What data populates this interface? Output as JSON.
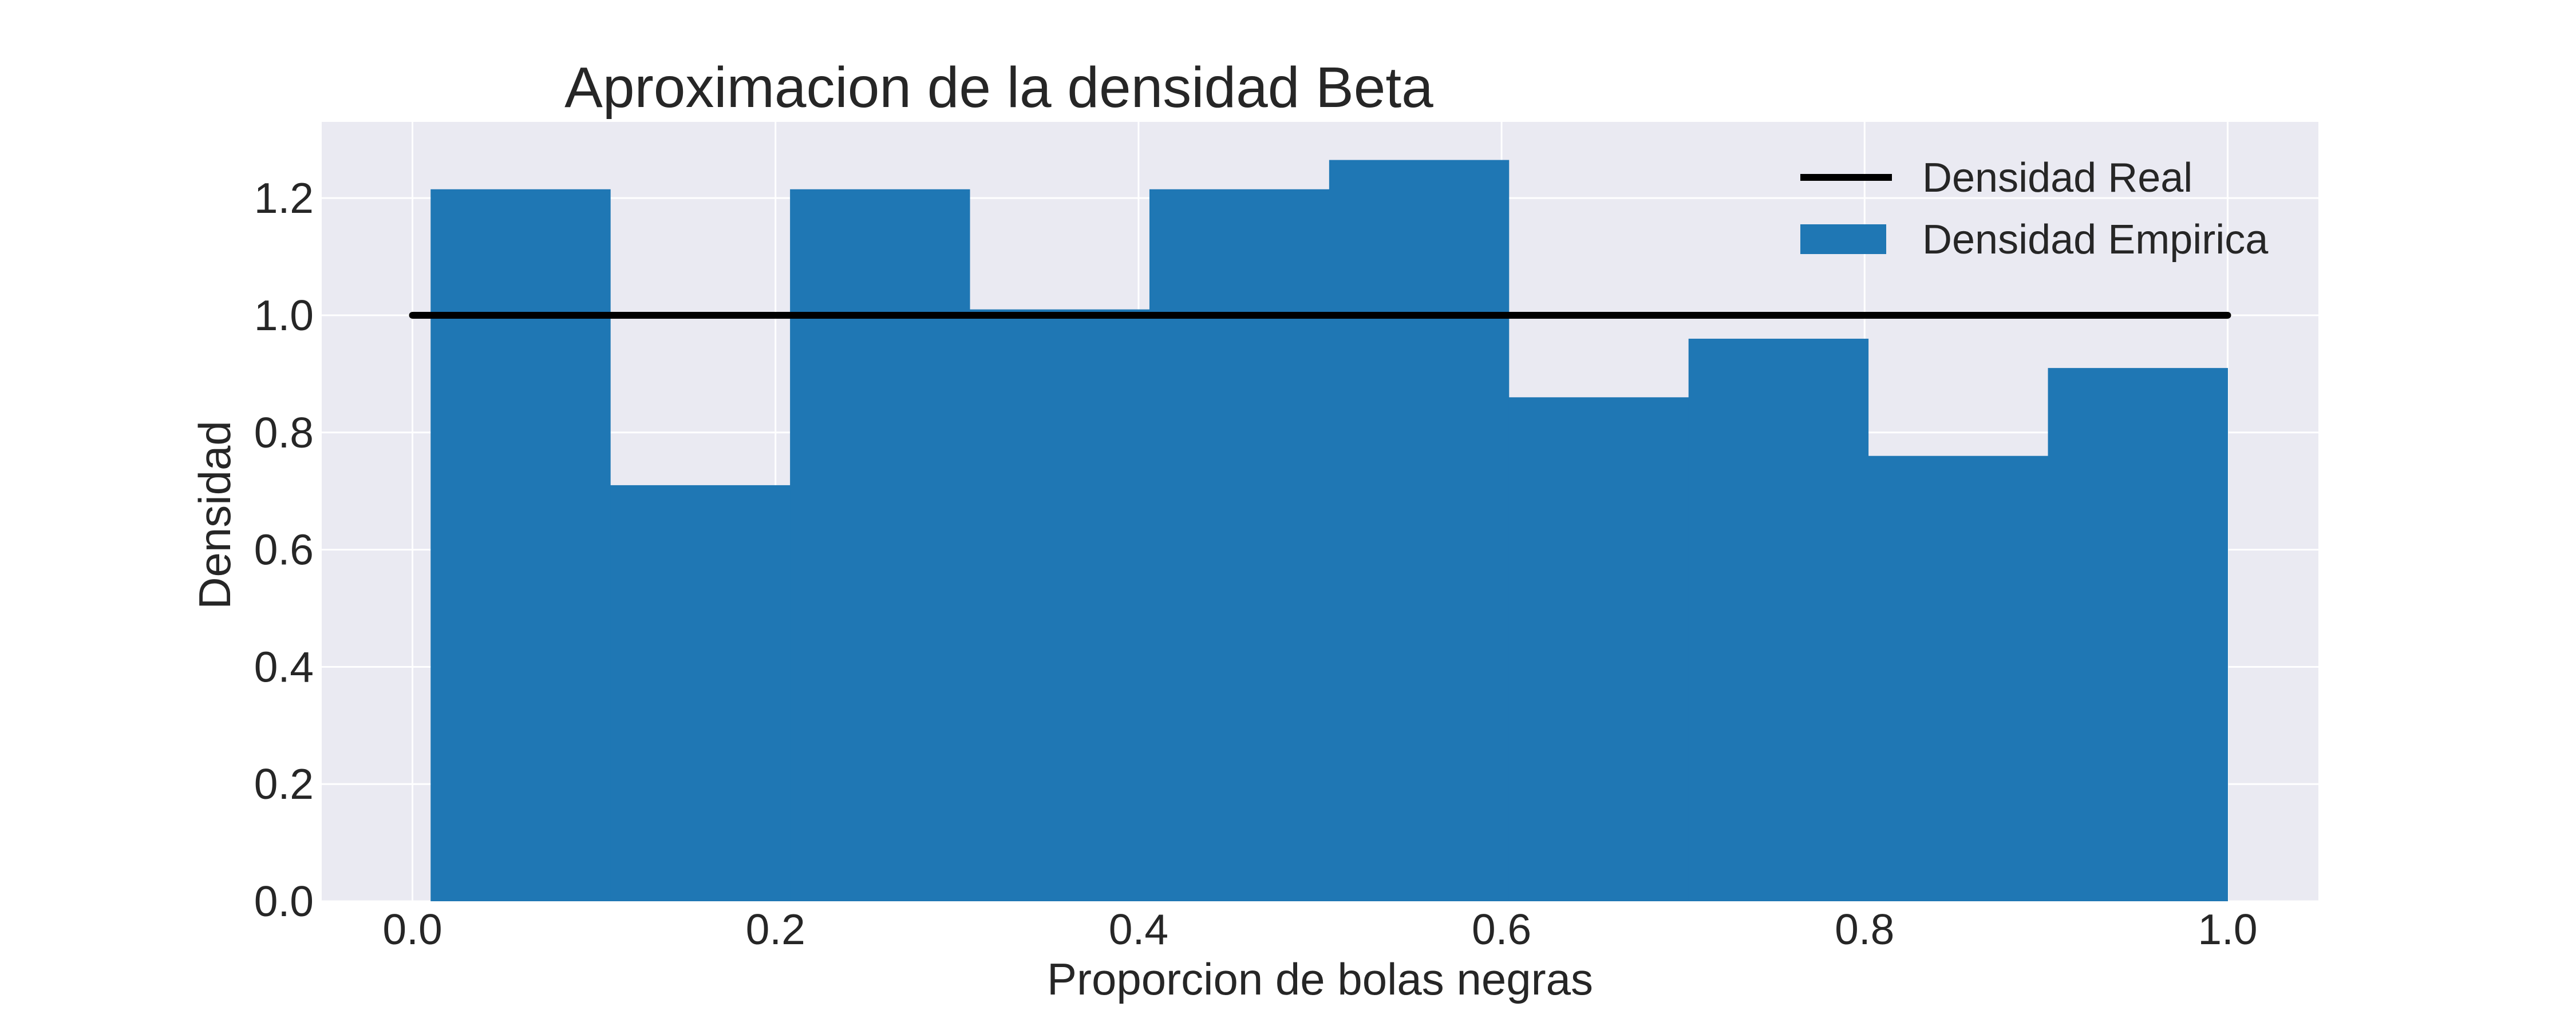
{
  "chart_data": {
    "type": "bar",
    "title": "Aproximacion de la densidad Beta",
    "xlabel": "Proporcion de bolas negras",
    "ylabel": "Densidad",
    "xlim": [
      -0.05,
      1.05
    ],
    "ylim": [
      0,
      1.33
    ],
    "x_ticks": [
      "0.0",
      "0.2",
      "0.4",
      "0.6",
      "0.8",
      "1.0"
    ],
    "y_ticks": [
      "0.0",
      "0.2",
      "0.4",
      "0.6",
      "0.8",
      "1.0",
      "1.2"
    ],
    "grid": true,
    "legend_position": "top-right",
    "histogram": {
      "name": "Densidad Empirica",
      "color": "#1f77b4",
      "bin_edges": [
        0.01,
        0.109,
        0.208,
        0.307,
        0.406,
        0.505,
        0.604,
        0.703,
        0.802,
        0.901,
        1.0
      ],
      "values": [
        1.215,
        0.71,
        1.215,
        1.01,
        1.215,
        1.265,
        0.86,
        0.96,
        0.76,
        0.91
      ]
    },
    "line": {
      "name": "Densidad Real",
      "color": "#000000",
      "x": [
        0.0,
        1.0
      ],
      "y": [
        1.0,
        1.0
      ]
    }
  }
}
